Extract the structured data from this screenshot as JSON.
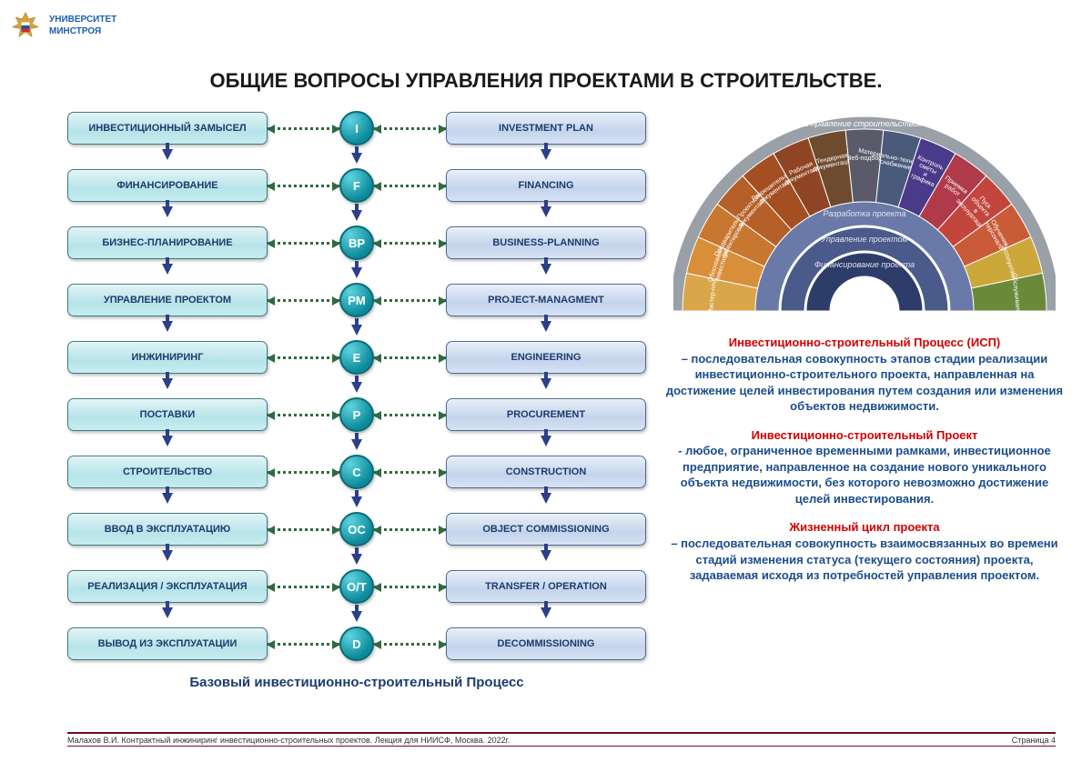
{
  "header": {
    "org_line1": "УНИВЕРСИТЕТ",
    "org_line2": "МИНСТРОЯ"
  },
  "title": "ОБЩИЕ ВОПРОСЫ УПРАВЛЕНИЯ ПРОЕКТАМИ В СТРОИТЕЛЬСТВЕ.",
  "flowchart": {
    "type": "flowchart",
    "caption": "Базовый инвестиционно-строительный Процесс",
    "left_box_fill": "#cdeef1",
    "right_box_fill": "#d3e0f0",
    "circle_fill": "#1b9db0",
    "connector_color": "#2d6b3f",
    "arrow_color": "#2b3f8a",
    "rows": [
      {
        "ru": "ИНВЕСТИЦИОННЫЙ ЗАМЫСЕЛ",
        "code": "I",
        "en": "INVESTMENT PLAN"
      },
      {
        "ru": "ФИНАНСИРОВАНИЕ",
        "code": "F",
        "en": "FINANCING"
      },
      {
        "ru": "БИЗНЕС-ПЛАНИРОВАНИЕ",
        "code": "BP",
        "en": "BUSINESS-PLANNING"
      },
      {
        "ru": "УПРАВЛЕНИЕ ПРОЕКТОМ",
        "code": "PM",
        "en": "PROJECT-MANAGMENT"
      },
      {
        "ru": "ИНЖИНИРИНГ",
        "code": "E",
        "en": "ENGINEERING"
      },
      {
        "ru": "ПОСТАВКИ",
        "code": "P",
        "en": "PROCUREMENT"
      },
      {
        "ru": "СТРОИТЕЛЬСТВО",
        "code": "C",
        "en": "CONSTRUCTION"
      },
      {
        "ru": "ВВОД В ЭКСПЛУАТАЦИЮ",
        "code": "OC",
        "en": "OBJECT COMMISSIONING"
      },
      {
        "ru": "РЕАЛИЗАЦИЯ / ЭКСПЛУАТАЦИЯ",
        "code": "O/T",
        "en": "TRANSFER / OPERATION"
      },
      {
        "ru": "ВЫВОД ИЗ ЭКСПЛУАТАЦИИ",
        "code": "D",
        "en": "DECOMMISSIONING"
      }
    ]
  },
  "semicircle": {
    "type": "radial-arc-diagram",
    "outer_header": "Управление строительством",
    "inner_bands": [
      "Разработка проекта",
      "Управление проектом",
      "Финансирование проекта"
    ],
    "segments": [
      {
        "label": "Мастер-план",
        "color": "#d9a64a"
      },
      {
        "label": "Обоснование инвестиций",
        "color": "#d98f3a"
      },
      {
        "label": "Предварительное проектирование",
        "color": "#c7772f"
      },
      {
        "label": "Проектная документация",
        "color": "#b56028"
      },
      {
        "label": "Разрешительная документация",
        "color": "#a34f22"
      },
      {
        "label": "Рабочая документация",
        "color": "#8f4523"
      },
      {
        "label": "Тендерная документация",
        "color": "#6e4a2f"
      },
      {
        "label": "Веб-подбор",
        "color": "#5a5a6a"
      },
      {
        "label": "Материально-техническое снабжение",
        "color": "#4a5a7a"
      },
      {
        "label": "Контроль сметы и графика",
        "color": "#4a3a8a"
      },
      {
        "label": "Приемка работ",
        "color": "#b03a4a"
      },
      {
        "label": "Пуск объекта в эксплуатацию",
        "color": "#c2453e"
      },
      {
        "label": "Обучение персонала",
        "color": "#c95b38"
      },
      {
        "label": "Эксплуатация",
        "color": "#cca83a"
      },
      {
        "label": "Обслуживание",
        "color": "#6a8a3a"
      }
    ]
  },
  "definitions": [
    {
      "title": "Инвестиционно-строительный Процесс (ИСП)",
      "body": "– последовательная совокупность этапов стадии реализации инвестиционно-строительного проекта, направленная на достижение целей инвестирования путем создания или изменения объектов недвижимости."
    },
    {
      "title": "Инвестиционно-строительный Проект",
      "body": "- любое, ограниченное временными рамками, инвестиционное предприятие, направленное на создание нового уникального объекта недвижимости, без которого невозможно достижение целей инвестирования."
    },
    {
      "title": "Жизненный цикл проекта",
      "body": "– последовательная совокупность взаимосвязанных во времени стадий изменения статуса (текущего состояния) проекта, задаваемая исходя из потребностей управления проектом."
    }
  ],
  "footer": {
    "left": "Малахов В.И. Контрактный инжиниринг инвестиционно-строительных проектов. Лекция для НИИСФ, Москва. 2022г.",
    "right": "Страница 4"
  }
}
